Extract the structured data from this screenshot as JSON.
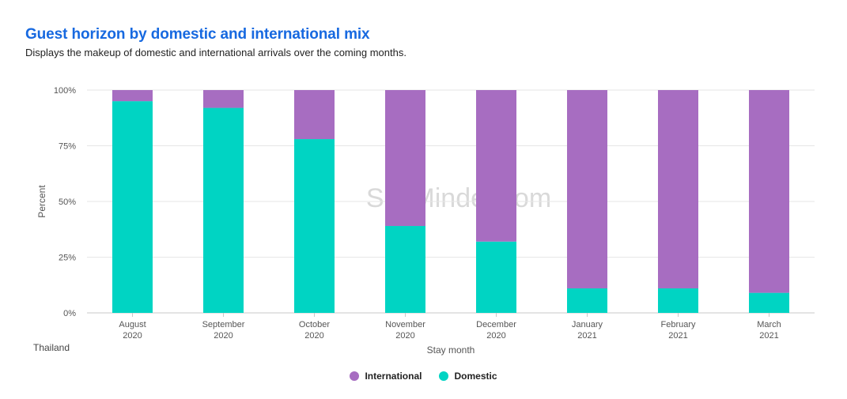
{
  "header": {
    "title": "Guest horizon by domestic and international mix",
    "subtitle": "Displays the makeup of domestic and international arrivals over the coming months."
  },
  "region": "Thailand",
  "watermark": "SiteMinder.com",
  "colors": {
    "international": "#a76dc1",
    "domestic": "#00d4c3"
  },
  "chart_data": {
    "type": "bar",
    "stacked": true,
    "title": "Guest horizon by domestic and international mix",
    "xlabel": "Stay month",
    "ylabel": "Percent",
    "ylim": [
      0,
      100
    ],
    "yticks": [
      "0%",
      "25%",
      "50%",
      "75%",
      "100%"
    ],
    "categories": [
      [
        "August",
        "2020"
      ],
      [
        "September",
        "2020"
      ],
      [
        "October",
        "2020"
      ],
      [
        "November",
        "2020"
      ],
      [
        "December",
        "2020"
      ],
      [
        "January",
        "2021"
      ],
      [
        "February",
        "2021"
      ],
      [
        "March",
        "2021"
      ]
    ],
    "series": [
      {
        "name": "Domestic",
        "values": [
          95,
          92,
          78,
          39,
          32,
          11,
          11,
          9
        ]
      },
      {
        "name": "International",
        "values": [
          5,
          8,
          22,
          61,
          68,
          89,
          89,
          91
        ]
      }
    ],
    "legend": [
      "International",
      "Domestic"
    ],
    "legend_position": "bottom-center"
  }
}
